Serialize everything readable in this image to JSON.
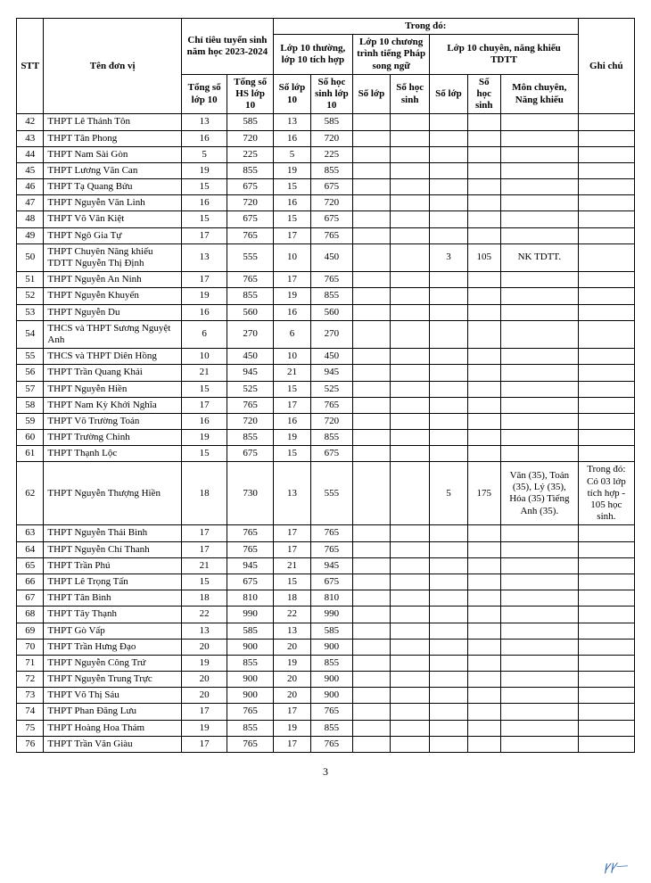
{
  "headers": {
    "stt": "STT",
    "ten": "Tên đơn vị",
    "chitieu": "Chỉ tiêu tuyển sinh năm học 2023-2024",
    "trongdo": "Trong đó:",
    "ghichu": "Ghi chú",
    "tongso_lop10": "Tổng số lớp 10",
    "tongso_hs10": "Tổng số HS lớp 10",
    "lop10thuong": "Lớp 10 thường, lớp 10 tích hợp",
    "lop10phap": "Lớp 10 chương trình tiếng Pháp song ngữ",
    "lop10chuyen": "Lớp 10 chuyên, năng khiếu TDTT",
    "solop10_a": "Số lớp 10",
    "sohs10_a": "Số học sinh lớp 10",
    "solop_b": "Số lớp",
    "sohs_b": "Số học sinh",
    "solop_c": "Số lớp",
    "sohs_c": "Số học sinh",
    "mon": "Môn chuyên, Năng khiếu"
  },
  "rows": [
    {
      "stt": "42",
      "ten": "THPT Lê Thánh Tôn",
      "tl": "13",
      "th": "585",
      "l1": "13",
      "h1": "585",
      "l2": "",
      "h2": "",
      "l3": "",
      "h3": "",
      "mon": "",
      "ghi": ""
    },
    {
      "stt": "43",
      "ten": "THPT Tân Phong",
      "tl": "16",
      "th": "720",
      "l1": "16",
      "h1": "720",
      "l2": "",
      "h2": "",
      "l3": "",
      "h3": "",
      "mon": "",
      "ghi": ""
    },
    {
      "stt": "44",
      "ten": "THPT Nam Sài Gòn",
      "tl": "5",
      "th": "225",
      "l1": "5",
      "h1": "225",
      "l2": "",
      "h2": "",
      "l3": "",
      "h3": "",
      "mon": "",
      "ghi": ""
    },
    {
      "stt": "45",
      "ten": "THPT Lương Văn Can",
      "tl": "19",
      "th": "855",
      "l1": "19",
      "h1": "855",
      "l2": "",
      "h2": "",
      "l3": "",
      "h3": "",
      "mon": "",
      "ghi": ""
    },
    {
      "stt": "46",
      "ten": "THPT Tạ Quang Bửu",
      "tl": "15",
      "th": "675",
      "l1": "15",
      "h1": "675",
      "l2": "",
      "h2": "",
      "l3": "",
      "h3": "",
      "mon": "",
      "ghi": ""
    },
    {
      "stt": "47",
      "ten": "THPT Nguyễn Văn Linh",
      "tl": "16",
      "th": "720",
      "l1": "16",
      "h1": "720",
      "l2": "",
      "h2": "",
      "l3": "",
      "h3": "",
      "mon": "",
      "ghi": ""
    },
    {
      "stt": "48",
      "ten": "THPT Võ Văn Kiệt",
      "tl": "15",
      "th": "675",
      "l1": "15",
      "h1": "675",
      "l2": "",
      "h2": "",
      "l3": "",
      "h3": "",
      "mon": "",
      "ghi": ""
    },
    {
      "stt": "49",
      "ten": "THPT Ngô Gia Tự",
      "tl": "17",
      "th": "765",
      "l1": "17",
      "h1": "765",
      "l2": "",
      "h2": "",
      "l3": "",
      "h3": "",
      "mon": "",
      "ghi": ""
    },
    {
      "stt": "50",
      "ten": "THPT Chuyên Năng khiếu TDTT Nguyễn Thị Định",
      "tl": "13",
      "th": "555",
      "l1": "10",
      "h1": "450",
      "l2": "",
      "h2": "",
      "l3": "3",
      "h3": "105",
      "mon": "NK TDTT.",
      "ghi": ""
    },
    {
      "stt": "51",
      "ten": "THPT Nguyễn An Ninh",
      "tl": "17",
      "th": "765",
      "l1": "17",
      "h1": "765",
      "l2": "",
      "h2": "",
      "l3": "",
      "h3": "",
      "mon": "",
      "ghi": ""
    },
    {
      "stt": "52",
      "ten": "THPT Nguyễn Khuyến",
      "tl": "19",
      "th": "855",
      "l1": "19",
      "h1": "855",
      "l2": "",
      "h2": "",
      "l3": "",
      "h3": "",
      "mon": "",
      "ghi": ""
    },
    {
      "stt": "53",
      "ten": "THPT Nguyễn Du",
      "tl": "16",
      "th": "560",
      "l1": "16",
      "h1": "560",
      "l2": "",
      "h2": "",
      "l3": "",
      "h3": "",
      "mon": "",
      "ghi": ""
    },
    {
      "stt": "54",
      "ten": "THCS và THPT Sương Nguyệt Anh",
      "tl": "6",
      "th": "270",
      "l1": "6",
      "h1": "270",
      "l2": "",
      "h2": "",
      "l3": "",
      "h3": "",
      "mon": "",
      "ghi": ""
    },
    {
      "stt": "55",
      "ten": "THCS và THPT Diên Hồng",
      "tl": "10",
      "th": "450",
      "l1": "10",
      "h1": "450",
      "l2": "",
      "h2": "",
      "l3": "",
      "h3": "",
      "mon": "",
      "ghi": ""
    },
    {
      "stt": "56",
      "ten": "THPT Trần Quang Khải",
      "tl": "21",
      "th": "945",
      "l1": "21",
      "h1": "945",
      "l2": "",
      "h2": "",
      "l3": "",
      "h3": "",
      "mon": "",
      "ghi": ""
    },
    {
      "stt": "57",
      "ten": "THPT Nguyễn Hiền",
      "tl": "15",
      "th": "525",
      "l1": "15",
      "h1": "525",
      "l2": "",
      "h2": "",
      "l3": "",
      "h3": "",
      "mon": "",
      "ghi": ""
    },
    {
      "stt": "58",
      "ten": "THPT Nam Kỳ Khởi Nghĩa",
      "tl": "17",
      "th": "765",
      "l1": "17",
      "h1": "765",
      "l2": "",
      "h2": "",
      "l3": "",
      "h3": "",
      "mon": "",
      "ghi": ""
    },
    {
      "stt": "59",
      "ten": "THPT Võ Trường Toản",
      "tl": "16",
      "th": "720",
      "l1": "16",
      "h1": "720",
      "l2": "",
      "h2": "",
      "l3": "",
      "h3": "",
      "mon": "",
      "ghi": ""
    },
    {
      "stt": "60",
      "ten": "THPT Trường Chinh",
      "tl": "19",
      "th": "855",
      "l1": "19",
      "h1": "855",
      "l2": "",
      "h2": "",
      "l3": "",
      "h3": "",
      "mon": "",
      "ghi": ""
    },
    {
      "stt": "61",
      "ten": "THPT Thạnh Lộc",
      "tl": "15",
      "th": "675",
      "l1": "15",
      "h1": "675",
      "l2": "",
      "h2": "",
      "l3": "",
      "h3": "",
      "mon": "",
      "ghi": ""
    },
    {
      "stt": "62",
      "ten": "THPT Nguyễn Thượng Hiền",
      "tl": "18",
      "th": "730",
      "l1": "13",
      "h1": "555",
      "l2": "",
      "h2": "",
      "l3": "5",
      "h3": "175",
      "mon": "Văn (35), Toán (35), Lý (35), Hóa (35) Tiếng Anh (35).",
      "ghi": "Trong đó: Có 03 lớp tích hợp - 105 học sinh."
    },
    {
      "stt": "63",
      "ten": "THPT Nguyễn Thái Bình",
      "tl": "17",
      "th": "765",
      "l1": "17",
      "h1": "765",
      "l2": "",
      "h2": "",
      "l3": "",
      "h3": "",
      "mon": "",
      "ghi": ""
    },
    {
      "stt": "64",
      "ten": "THPT Nguyễn Chí Thanh",
      "tl": "17",
      "th": "765",
      "l1": "17",
      "h1": "765",
      "l2": "",
      "h2": "",
      "l3": "",
      "h3": "",
      "mon": "",
      "ghi": ""
    },
    {
      "stt": "65",
      "ten": "THPT Trần Phú",
      "tl": "21",
      "th": "945",
      "l1": "21",
      "h1": "945",
      "l2": "",
      "h2": "",
      "l3": "",
      "h3": "",
      "mon": "",
      "ghi": ""
    },
    {
      "stt": "66",
      "ten": "THPT Lê Trọng Tấn",
      "tl": "15",
      "th": "675",
      "l1": "15",
      "h1": "675",
      "l2": "",
      "h2": "",
      "l3": "",
      "h3": "",
      "mon": "",
      "ghi": ""
    },
    {
      "stt": "67",
      "ten": "THPT Tân Bình",
      "tl": "18",
      "th": "810",
      "l1": "18",
      "h1": "810",
      "l2": "",
      "h2": "",
      "l3": "",
      "h3": "",
      "mon": "",
      "ghi": ""
    },
    {
      "stt": "68",
      "ten": "THPT Tây Thạnh",
      "tl": "22",
      "th": "990",
      "l1": "22",
      "h1": "990",
      "l2": "",
      "h2": "",
      "l3": "",
      "h3": "",
      "mon": "",
      "ghi": ""
    },
    {
      "stt": "69",
      "ten": "THPT Gò Vấp",
      "tl": "13",
      "th": "585",
      "l1": "13",
      "h1": "585",
      "l2": "",
      "h2": "",
      "l3": "",
      "h3": "",
      "mon": "",
      "ghi": ""
    },
    {
      "stt": "70",
      "ten": "THPT Trần Hưng Đạo",
      "tl": "20",
      "th": "900",
      "l1": "20",
      "h1": "900",
      "l2": "",
      "h2": "",
      "l3": "",
      "h3": "",
      "mon": "",
      "ghi": ""
    },
    {
      "stt": "71",
      "ten": "THPT Nguyễn Công Trứ",
      "tl": "19",
      "th": "855",
      "l1": "19",
      "h1": "855",
      "l2": "",
      "h2": "",
      "l3": "",
      "h3": "",
      "mon": "",
      "ghi": ""
    },
    {
      "stt": "72",
      "ten": "THPT Nguyễn Trung Trực",
      "tl": "20",
      "th": "900",
      "l1": "20",
      "h1": "900",
      "l2": "",
      "h2": "",
      "l3": "",
      "h3": "",
      "mon": "",
      "ghi": ""
    },
    {
      "stt": "73",
      "ten": "THPT Võ Thị Sáu",
      "tl": "20",
      "th": "900",
      "l1": "20",
      "h1": "900",
      "l2": "",
      "h2": "",
      "l3": "",
      "h3": "",
      "mon": "",
      "ghi": ""
    },
    {
      "stt": "74",
      "ten": "THPT Phan Đăng Lưu",
      "tl": "17",
      "th": "765",
      "l1": "17",
      "h1": "765",
      "l2": "",
      "h2": "",
      "l3": "",
      "h3": "",
      "mon": "",
      "ghi": ""
    },
    {
      "stt": "75",
      "ten": "THPT Hoàng Hoa Thám",
      "tl": "19",
      "th": "855",
      "l1": "19",
      "h1": "855",
      "l2": "",
      "h2": "",
      "l3": "",
      "h3": "",
      "mon": "",
      "ghi": ""
    },
    {
      "stt": "76",
      "ten": "THPT Trần Văn Giàu",
      "tl": "17",
      "th": "765",
      "l1": "17",
      "h1": "765",
      "l2": "",
      "h2": "",
      "l3": "",
      "h3": "",
      "mon": "",
      "ghi": ""
    }
  ],
  "page_number": "3"
}
